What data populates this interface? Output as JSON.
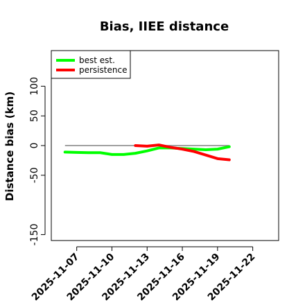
{
  "chart_data": {
    "type": "line",
    "title": "Bias, IIEE distance",
    "xlabel": "",
    "ylabel": "Distance bias (km)",
    "x_ticks": [
      "2025-11-07",
      "2025-11-10",
      "2025-11-13",
      "2025-11-16",
      "2025-11-19",
      "2025-11-22"
    ],
    "y_ticks": [
      -150,
      -50,
      0,
      50,
      100
    ],
    "xlim": [
      "2025-11-04T20:00",
      "2025-11-24T05:00"
    ],
    "ylim": [
      -160,
      160
    ],
    "reference_line": 0,
    "grid": false,
    "legend_position": "top-left",
    "series": [
      {
        "name": "best est.",
        "color": "#00ff00",
        "x": [
          "2025-11-06",
          "2025-11-07",
          "2025-11-08",
          "2025-11-09",
          "2025-11-10",
          "2025-11-11",
          "2025-11-12",
          "2025-11-13",
          "2025-11-14",
          "2025-11-15",
          "2025-11-16",
          "2025-11-17",
          "2025-11-18",
          "2025-11-19",
          "2025-11-20"
        ],
        "values": [
          -11,
          -11.5,
          -12,
          -12,
          -15,
          -15,
          -13,
          -9,
          -4,
          -4,
          -5,
          -6,
          -7,
          -6,
          -2
        ]
      },
      {
        "name": "persistence",
        "color": "#ff0000",
        "x": [
          "2025-11-12",
          "2025-11-13",
          "2025-11-14",
          "2025-11-15",
          "2025-11-16",
          "2025-11-17",
          "2025-11-18",
          "2025-11-19",
          "2025-11-20"
        ],
        "values": [
          0,
          -1,
          1,
          -3,
          -6,
          -10,
          -16,
          -22,
          -24
        ]
      }
    ]
  }
}
